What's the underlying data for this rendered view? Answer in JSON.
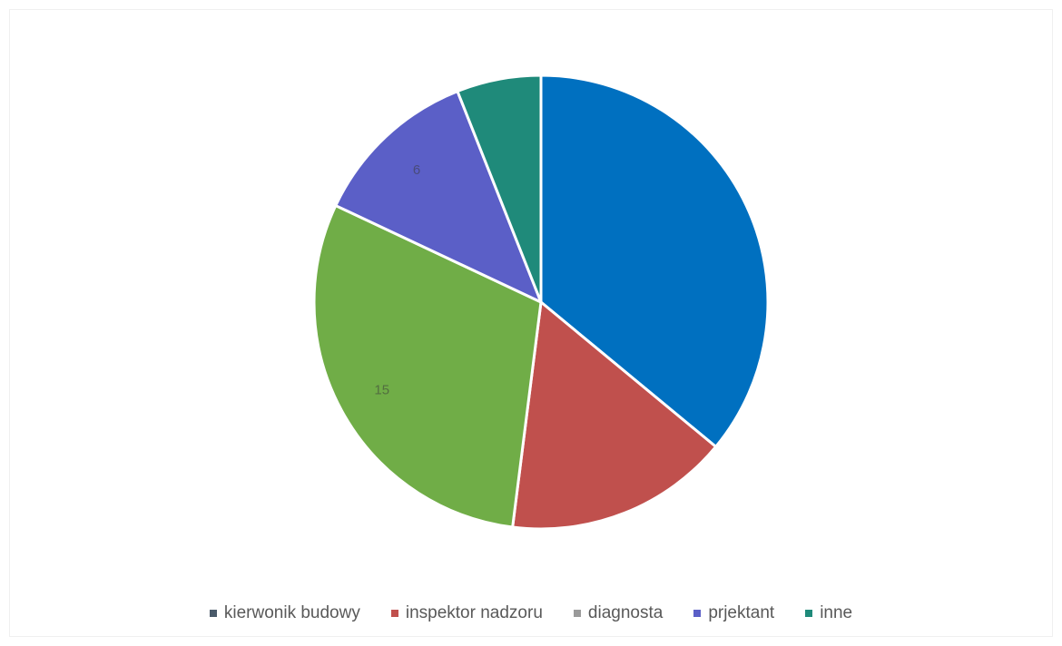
{
  "chart_data": {
    "type": "pie",
    "title": "",
    "categories": [
      "kierwonik budowy",
      "inspektor nadzoru",
      "diagnosta",
      "prjektant",
      "inne"
    ],
    "values": [
      18,
      8,
      15,
      6,
      3
    ],
    "data_labels": [
      "",
      "",
      "15",
      "6",
      ""
    ],
    "colors": [
      "#0070C0",
      "#C0504D",
      "#70AD47",
      "#5B5FC7",
      "#1F8A7A"
    ],
    "start_angle_deg": 0,
    "direction": "clockwise",
    "slice_border_color": "#ffffff",
    "legend": {
      "position": "bottom",
      "items": [
        {
          "label": "kierwonik budowy",
          "color": "#4A5A6A"
        },
        {
          "label": "inspektor nadzoru",
          "color": "#C0504D"
        },
        {
          "label": "diagnosta",
          "color": "#9A9A9A"
        },
        {
          "label": "prjektant",
          "color": "#5B5FC7"
        },
        {
          "label": "inne",
          "color": "#1F8A7A"
        }
      ]
    }
  }
}
